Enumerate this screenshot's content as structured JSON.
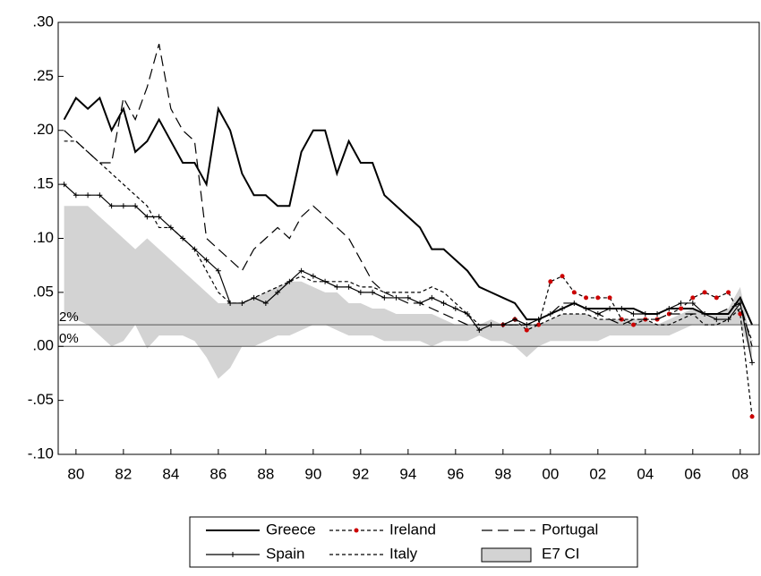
{
  "chart_data": {
    "type": "line",
    "x": [
      1979.5,
      1980,
      1980.5,
      1981,
      1981.5,
      1982,
      1982.5,
      1983,
      1983.5,
      1984,
      1984.5,
      1985,
      1985.5,
      1986,
      1986.5,
      1987,
      1987.5,
      1988,
      1988.5,
      1989,
      1989.5,
      1990,
      1990.5,
      1991,
      1991.5,
      1992,
      1992.5,
      1993,
      1993.5,
      1994,
      1994.5,
      1995,
      1995.5,
      1996,
      1996.5,
      1997,
      1997.5,
      1998,
      1998.5,
      1999,
      1999.5,
      2000,
      2000.5,
      2001,
      2001.5,
      2002,
      2002.5,
      2003,
      2003.5,
      2004,
      2004.5,
      2005,
      2005.5,
      2006,
      2006.5,
      2007,
      2007.5,
      2008,
      2008.5
    ],
    "xlim": [
      1979.25,
      2008.8
    ],
    "xticks": [
      {
        "value": 1980,
        "label": "80"
      },
      {
        "value": 1982,
        "label": "82"
      },
      {
        "value": 1984,
        "label": "84"
      },
      {
        "value": 1986,
        "label": "86"
      },
      {
        "value": 1988,
        "label": "88"
      },
      {
        "value": 1990,
        "label": "90"
      },
      {
        "value": 1992,
        "label": "92"
      },
      {
        "value": 1994,
        "label": "94"
      },
      {
        "value": 1996,
        "label": "96"
      },
      {
        "value": 1998,
        "label": "98"
      },
      {
        "value": 2000,
        "label": "00"
      },
      {
        "value": 2002,
        "label": "02"
      },
      {
        "value": 2004,
        "label": "04"
      },
      {
        "value": 2006,
        "label": "06"
      },
      {
        "value": 2008,
        "label": "08"
      }
    ],
    "ylim": [
      -0.1,
      0.3
    ],
    "yticks": [
      {
        "value": -0.1,
        "label": "-.10"
      },
      {
        "value": -0.05,
        "label": "-.05"
      },
      {
        "value": 0,
        "label": ".00"
      },
      {
        "value": 0.05,
        "label": ".05"
      },
      {
        "value": 0.1,
        "label": ".10"
      },
      {
        "value": 0.15,
        "label": ".15"
      },
      {
        "value": 0.2,
        "label": ".20"
      },
      {
        "value": 0.25,
        "label": ".25"
      },
      {
        "value": 0.3,
        "label": ".30"
      }
    ],
    "hlines": [
      {
        "value": 0.02,
        "label": "2%"
      },
      {
        "value": 0,
        "label": "0%"
      }
    ],
    "series": [
      {
        "name": "Greece",
        "color": "#000000",
        "style": "thick",
        "values": [
          0.21,
          0.23,
          0.22,
          0.23,
          0.2,
          0.22,
          0.18,
          0.19,
          0.21,
          0.19,
          0.17,
          0.17,
          0.15,
          0.22,
          0.2,
          0.16,
          0.14,
          0.14,
          0.13,
          0.13,
          0.18,
          0.2,
          0.2,
          0.16,
          0.19,
          0.17,
          0.17,
          0.14,
          0.13,
          0.12,
          0.11,
          0.09,
          0.09,
          0.08,
          0.07,
          0.055,
          0.05,
          0.045,
          0.04,
          0.025,
          0.025,
          0.03,
          0.035,
          0.04,
          0.035,
          0.035,
          0.035,
          0.035,
          0.035,
          0.03,
          0.03,
          0.035,
          0.035,
          0.035,
          0.03,
          0.03,
          0.03,
          0.045,
          0.02
        ]
      },
      {
        "name": "Ireland",
        "color": "#cc0000",
        "style": "dash",
        "marker": "dot",
        "values": [
          null,
          null,
          null,
          null,
          null,
          null,
          null,
          null,
          null,
          null,
          null,
          null,
          null,
          null,
          null,
          null,
          null,
          null,
          null,
          null,
          null,
          null,
          null,
          null,
          null,
          null,
          null,
          null,
          null,
          null,
          null,
          null,
          null,
          null,
          null,
          null,
          null,
          0.02,
          0.025,
          0.015,
          0.02,
          0.06,
          0.065,
          0.05,
          0.045,
          0.045,
          0.045,
          0.025,
          0.02,
          0.025,
          0.025,
          0.03,
          0.035,
          0.045,
          0.05,
          0.045,
          0.05,
          0.03,
          -0.065
        ]
      },
      {
        "name": "Portugal",
        "color": "#000000",
        "style": "long-dash",
        "values": [
          0.2,
          0.19,
          0.18,
          0.17,
          0.17,
          0.23,
          0.21,
          0.24,
          0.28,
          0.22,
          0.2,
          0.19,
          0.1,
          0.09,
          0.08,
          0.07,
          0.09,
          0.1,
          0.11,
          0.1,
          0.12,
          0.13,
          0.12,
          0.11,
          0.1,
          0.08,
          0.06,
          0.05,
          0.045,
          0.04,
          0.04,
          0.035,
          0.03,
          0.025,
          0.02,
          0.02,
          0.02,
          0.02,
          0.02,
          0.02,
          0.025,
          0.03,
          0.04,
          0.04,
          0.035,
          0.03,
          0.025,
          0.02,
          0.025,
          0.025,
          0.025,
          0.03,
          0.03,
          0.03,
          0.03,
          0.03,
          0.035,
          0.04,
          0.0
        ]
      },
      {
        "name": "Spain",
        "color": "#000000",
        "style": "solid",
        "marker": "plus",
        "values": [
          0.15,
          0.14,
          0.14,
          0.14,
          0.13,
          0.13,
          0.13,
          0.12,
          0.12,
          0.11,
          0.1,
          0.09,
          0.08,
          0.07,
          0.04,
          0.04,
          0.045,
          0.04,
          0.05,
          0.06,
          0.07,
          0.065,
          0.06,
          0.055,
          0.055,
          0.05,
          0.05,
          0.045,
          0.045,
          0.045,
          0.04,
          0.045,
          0.04,
          0.035,
          0.03,
          0.015,
          0.02,
          0.02,
          0.025,
          0.02,
          0.025,
          0.03,
          0.035,
          0.04,
          0.035,
          0.03,
          0.035,
          0.035,
          0.03,
          0.03,
          0.03,
          0.035,
          0.04,
          0.04,
          0.03,
          0.025,
          0.025,
          0.04,
          -0.015
        ]
      },
      {
        "name": "Italy",
        "color": "#000000",
        "style": "dash",
        "values": [
          0.19,
          0.19,
          0.18,
          0.17,
          0.16,
          0.15,
          0.14,
          0.13,
          0.11,
          0.11,
          0.1,
          0.09,
          0.07,
          0.05,
          0.04,
          0.04,
          0.045,
          0.05,
          0.055,
          0.06,
          0.065,
          0.06,
          0.06,
          0.06,
          0.06,
          0.055,
          0.055,
          0.05,
          0.05,
          0.05,
          0.05,
          0.055,
          0.05,
          0.04,
          0.03,
          0.02,
          0.02,
          0.02,
          0.02,
          0.02,
          0.02,
          0.025,
          0.03,
          0.03,
          0.03,
          0.025,
          0.025,
          0.025,
          0.025,
          0.025,
          0.02,
          0.02,
          0.025,
          0.03,
          0.02,
          0.02,
          0.025,
          0.035,
          0.005
        ]
      },
      {
        "name": "E7 CI",
        "color": "#d3d3d3",
        "type": "area",
        "values": [
          0.13,
          0.13,
          0.13,
          0.12,
          0.11,
          0.1,
          0.09,
          0.1,
          0.09,
          0.08,
          0.07,
          0.06,
          0.05,
          0.04,
          0.04,
          0.04,
          0.045,
          0.05,
          0.055,
          0.06,
          0.06,
          0.055,
          0.05,
          0.05,
          0.04,
          0.04,
          0.035,
          0.035,
          0.03,
          0.03,
          0.03,
          0.03,
          0.025,
          0.02,
          0.02,
          0.02,
          0.025,
          0.02,
          0.02,
          0.02,
          0.02,
          0.025,
          0.03,
          0.03,
          0.03,
          0.025,
          0.025,
          0.025,
          0.025,
          0.025,
          0.02,
          0.025,
          0.03,
          0.035,
          0.03,
          0.03,
          0.035,
          0.055,
          0.0
        ],
        "lower": [
          0.03,
          0.025,
          0.02,
          0.01,
          0.0,
          0.005,
          0.02,
          -0.002,
          0.01,
          0.01,
          0.01,
          0.005,
          -0.01,
          -0.03,
          -0.02,
          0.0,
          0.0,
          0.005,
          0.01,
          0.01,
          0.015,
          0.02,
          0.02,
          0.015,
          0.01,
          0.01,
          0.01,
          0.005,
          0.005,
          0.005,
          0.005,
          0.0,
          0.005,
          0.005,
          0.005,
          0.01,
          0.005,
          0.005,
          0.0,
          -0.01,
          0.0,
          0.005,
          0.005,
          0.005,
          0.005,
          0.005,
          0.01,
          0.01,
          0.01,
          0.01,
          0.01,
          0.01,
          0.015,
          0.02,
          0.02,
          0.02,
          0.02,
          0.02,
          -0.01
        ]
      }
    ]
  }
}
